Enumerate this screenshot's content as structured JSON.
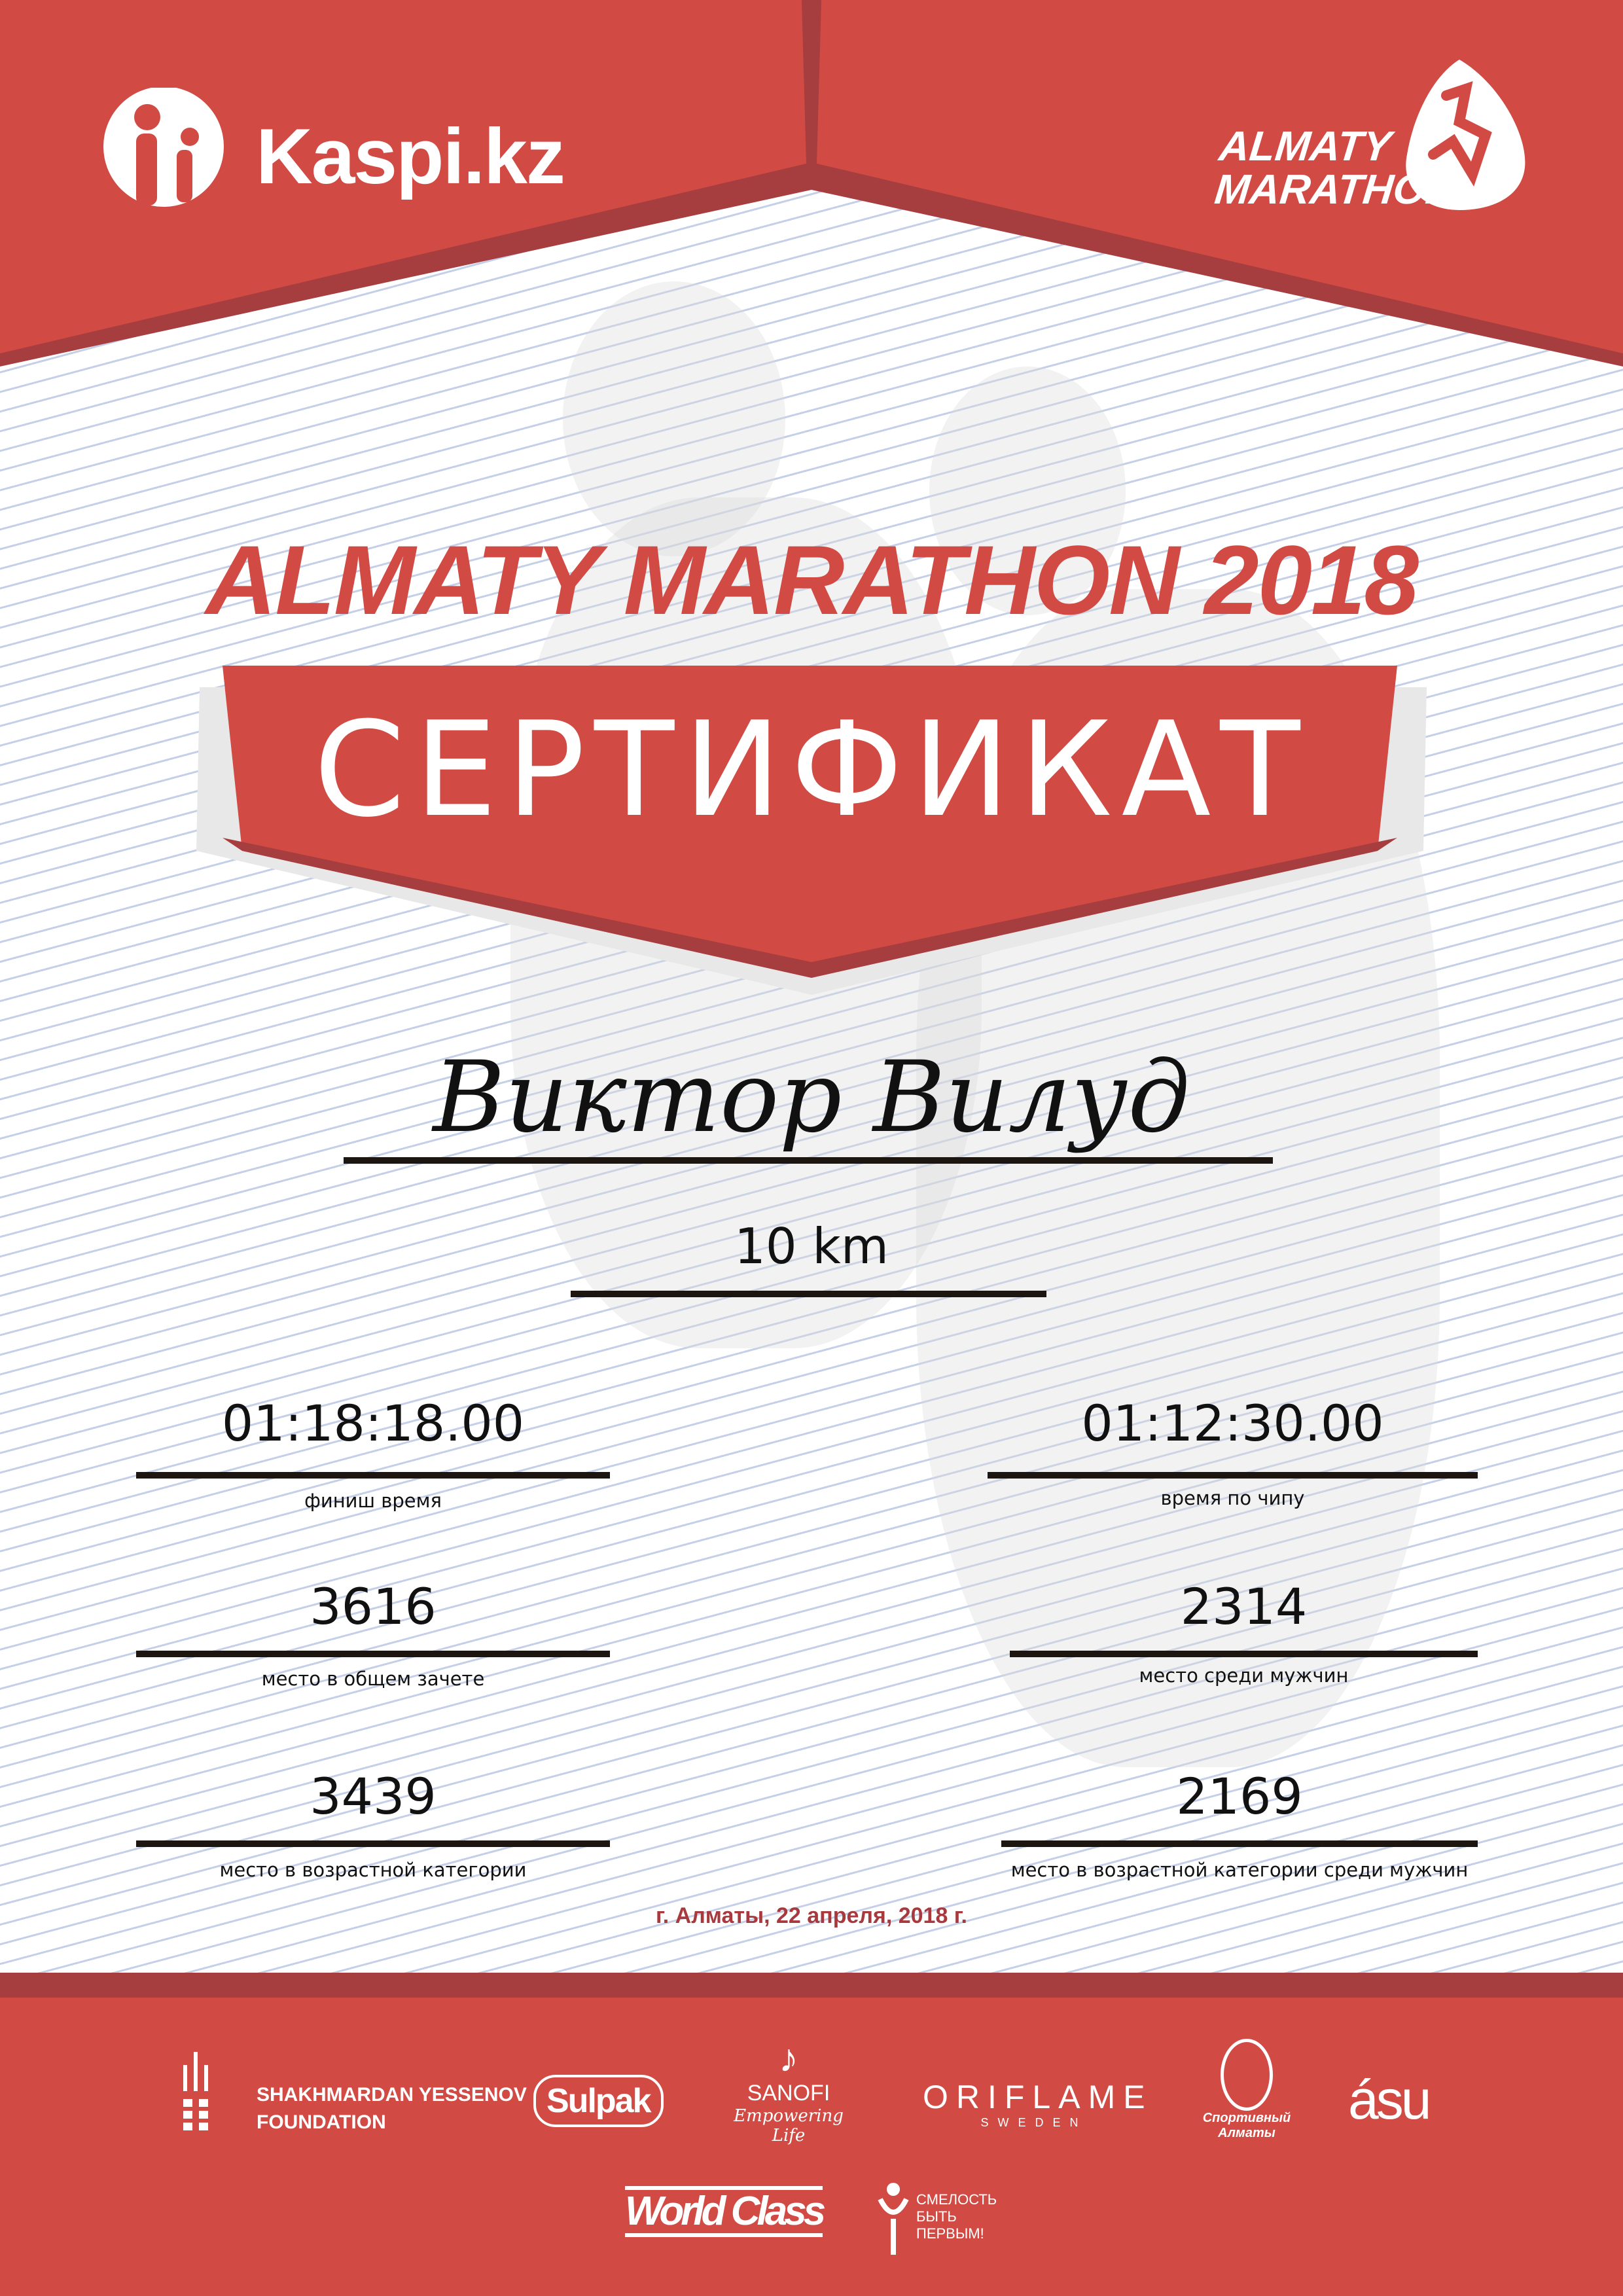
{
  "header": {
    "sponsor_logo": "Kaspi.kz",
    "event_logo_line1": "ALMATY",
    "event_logo_line2": "MARATHON"
  },
  "title": "ALMATY MARATHON 2018",
  "certificate_label": "СЕРТИФИКАТ",
  "participant_name": "Виктор Вилуд",
  "distance": "10 km",
  "results": [
    {
      "value": "01:18:18.00",
      "label": "финиш время"
    },
    {
      "value": "01:12:30.00",
      "label": "время по чипу"
    },
    {
      "value": "3616",
      "label": "место в общем зачете"
    },
    {
      "value": "2314",
      "label": "место среди мужчин"
    },
    {
      "value": "3439",
      "label": "место в возрастной категории"
    },
    {
      "value": "2169",
      "label": "место в возрастной категории среди мужчин"
    }
  ],
  "date_place": "г. Алматы, 22 апреля, 2018 г.",
  "sponsors": [
    "SHAKHMARDAN YESSENOV",
    "FOUNDATION",
    "Sulpak",
    "SANOFI",
    "Empowering Life",
    "ORIFLAME",
    "SWEDEN",
    "Спортивный Алматы",
    "ásu",
    "World Class",
    "СМЕЛОСТЬ",
    "БЫТЬ",
    "ПЕРВЫМ!"
  ],
  "colors": {
    "red": "#d14a44",
    "dark_red": "#a63d3f",
    "date": "#a83a3e"
  }
}
